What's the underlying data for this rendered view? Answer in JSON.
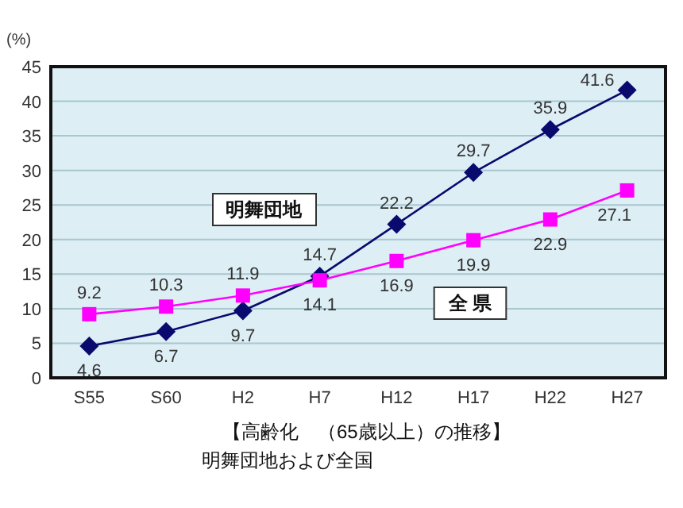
{
  "chart_data": {
    "type": "line",
    "ylabel": "(%)",
    "categories": [
      "S55",
      "S60",
      "H2",
      "H7",
      "H12",
      "H17",
      "H22",
      "H27"
    ],
    "series": [
      {
        "name": "明舞団地",
        "color": "#0a0a6e",
        "marker": "diamond",
        "values": [
          4.6,
          6.7,
          9.7,
          14.7,
          22.2,
          29.7,
          35.9,
          41.6
        ],
        "value_labels": [
          "4.6",
          "6.7",
          "9.7",
          "14.7",
          "22.2",
          "29.7",
          "35.9",
          "41.6"
        ]
      },
      {
        "name": "全 県",
        "color": "#ff00ff",
        "marker": "square",
        "values": [
          9.2,
          10.3,
          11.9,
          14.1,
          16.9,
          19.9,
          22.9,
          27.1
        ],
        "value_labels": [
          "9.2",
          "10.3",
          "11.9",
          "14.1",
          "16.9",
          "19.9",
          "22.9",
          "27.1"
        ]
      }
    ],
    "ylim": [
      0,
      45
    ],
    "yticks": [
      0,
      5,
      10,
      15,
      20,
      25,
      30,
      35,
      40,
      45
    ],
    "grid": "y",
    "legend": false,
    "annotations": [
      "【高齢化　（65歳以上）の推移】",
      "明舞団地および全国"
    ]
  }
}
